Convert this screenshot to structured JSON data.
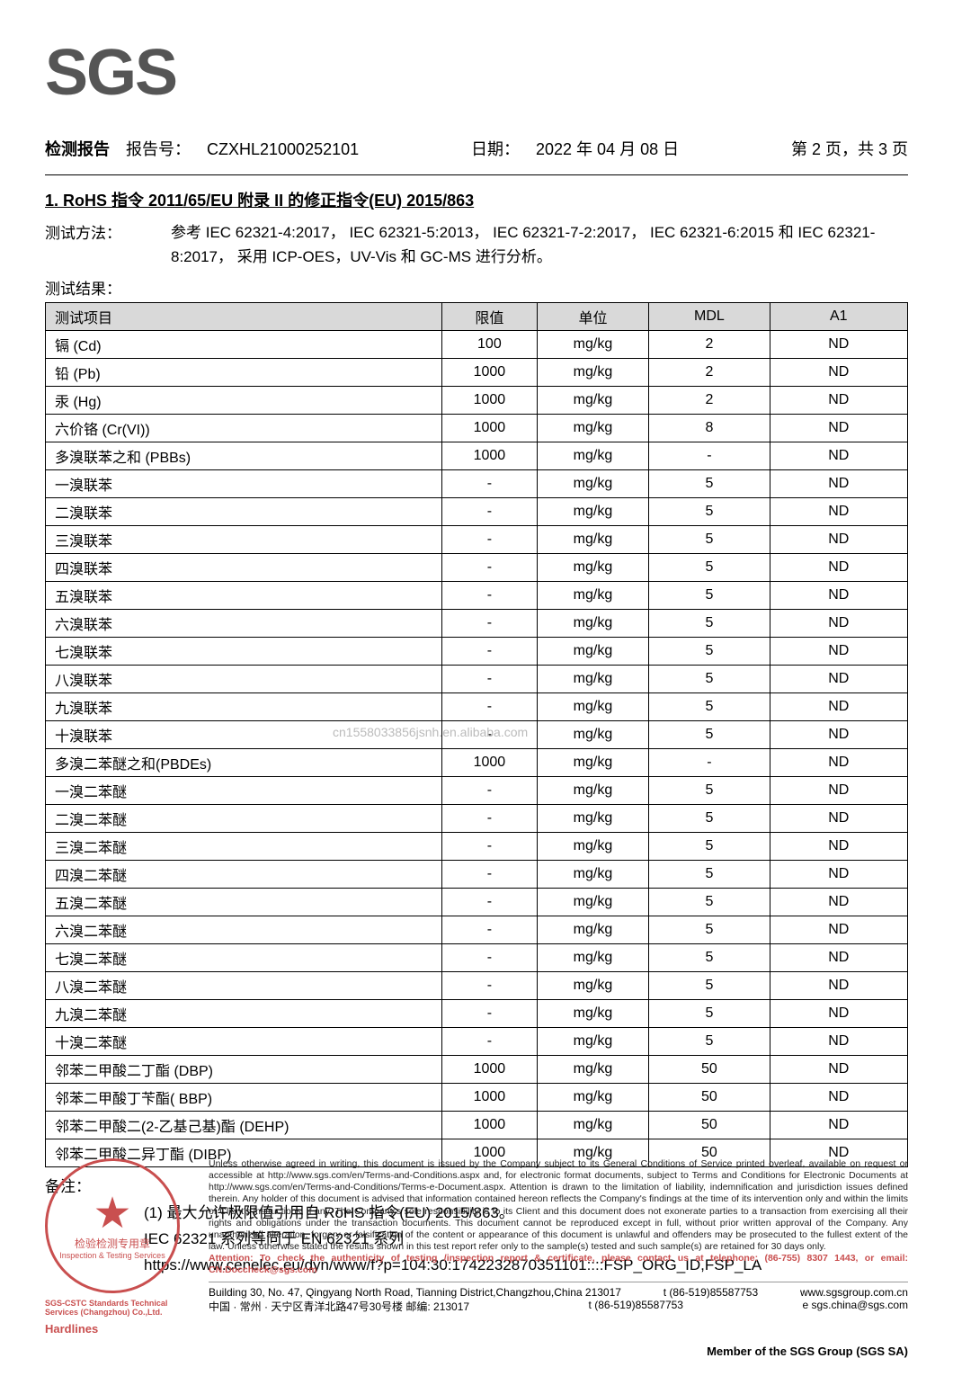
{
  "logo": "SGS",
  "header": {
    "report_label": "检测报告",
    "report_no_label": "报告号：",
    "report_no": "CZXHL21000252101",
    "date_label": "日期：",
    "date": "2022 年 04 月 08 日",
    "page": "第 2 页，共 3 页"
  },
  "section_title": "1. RoHS 指令 2011/65/EU 附录 II 的修正指令(EU) 2015/863",
  "method": {
    "label": "测试方法：",
    "text": "参考 IEC 62321-4:2017， IEC 62321-5:2013， IEC 62321-7-2:2017， IEC 62321-6:2015 和 IEC 62321-8:2017， 采用 ICP-OES，UV-Vis 和 GC-MS 进行分析。"
  },
  "result_label": "测试结果：",
  "watermark": "cn1558033856jsnh.en.alibaba.com",
  "table": {
    "headers": [
      "测试项目",
      "限值",
      "单位",
      "MDL",
      "A1"
    ],
    "rows": [
      [
        "镉 (Cd)",
        "100",
        "mg/kg",
        "2",
        "ND"
      ],
      [
        "铅 (Pb)",
        "1000",
        "mg/kg",
        "2",
        "ND"
      ],
      [
        "汞 (Hg)",
        "1000",
        "mg/kg",
        "2",
        "ND"
      ],
      [
        "六价铬 (Cr(VI))",
        "1000",
        "mg/kg",
        "8",
        "ND"
      ],
      [
        "多溴联苯之和 (PBBs)",
        "1000",
        "mg/kg",
        "-",
        "ND"
      ],
      [
        "一溴联苯",
        "-",
        "mg/kg",
        "5",
        "ND"
      ],
      [
        "二溴联苯",
        "-",
        "mg/kg",
        "5",
        "ND"
      ],
      [
        "三溴联苯",
        "-",
        "mg/kg",
        "5",
        "ND"
      ],
      [
        "四溴联苯",
        "-",
        "mg/kg",
        "5",
        "ND"
      ],
      [
        "五溴联苯",
        "-",
        "mg/kg",
        "5",
        "ND"
      ],
      [
        "六溴联苯",
        "-",
        "mg/kg",
        "5",
        "ND"
      ],
      [
        "七溴联苯",
        "-",
        "mg/kg",
        "5",
        "ND"
      ],
      [
        "八溴联苯",
        "-",
        "mg/kg",
        "5",
        "ND"
      ],
      [
        "九溴联苯",
        "-",
        "mg/kg",
        "5",
        "ND"
      ],
      [
        "十溴联苯",
        "-",
        "mg/kg",
        "5",
        "ND"
      ],
      [
        "多溴二苯醚之和(PBDEs)",
        "1000",
        "mg/kg",
        "-",
        "ND"
      ],
      [
        "一溴二苯醚",
        "-",
        "mg/kg",
        "5",
        "ND"
      ],
      [
        "二溴二苯醚",
        "-",
        "mg/kg",
        "5",
        "ND"
      ],
      [
        "三溴二苯醚",
        "-",
        "mg/kg",
        "5",
        "ND"
      ],
      [
        "四溴二苯醚",
        "-",
        "mg/kg",
        "5",
        "ND"
      ],
      [
        "五溴二苯醚",
        "-",
        "mg/kg",
        "5",
        "ND"
      ],
      [
        "六溴二苯醚",
        "-",
        "mg/kg",
        "5",
        "ND"
      ],
      [
        "七溴二苯醚",
        "-",
        "mg/kg",
        "5",
        "ND"
      ],
      [
        "八溴二苯醚",
        "-",
        "mg/kg",
        "5",
        "ND"
      ],
      [
        "九溴二苯醚",
        "-",
        "mg/kg",
        "5",
        "ND"
      ],
      [
        "十溴二苯醚",
        "-",
        "mg/kg",
        "5",
        "ND"
      ],
      [
        "邻苯二甲酸二丁酯 (DBP)",
        "1000",
        "mg/kg",
        "50",
        "ND"
      ],
      [
        "邻苯二甲酸丁苄酯( BBP)",
        "1000",
        "mg/kg",
        "50",
        "ND"
      ],
      [
        "邻苯二甲酸二(2-乙基己基)酯 (DEHP)",
        "1000",
        "mg/kg",
        "50",
        "ND"
      ],
      [
        "邻苯二甲酸二异丁酯 (DIBP)",
        "1000",
        "mg/kg",
        "50",
        "ND"
      ]
    ]
  },
  "notes": {
    "label": "备注：",
    "line1": "(1) 最大允许极限值引用自 RoHS 指令(EU) 2015/863。",
    "line2": "IEC 62321 系列等同于 EN 62321 系列",
    "line3": "https://www.cenelec.eu/dyn/www/f?p=104:30:1742232870351101::::FSP_ORG_ID,FSP_LA"
  },
  "stamp": {
    "top": "检验检测专用章",
    "en": "Inspection & Testing Services",
    "bottom1": "SGS-CSTC Standards Technical Services (Changzhou) Co.,Ltd.",
    "bottom2": "Hardlines"
  },
  "legal": {
    "text": "Unless otherwise agreed in writing, this document is issued by the Company subject to its General Conditions of Service printed overleaf, available on request or accessible at http://www.sgs.com/en/Terms-and-Conditions.aspx and, for electronic format documents, subject to Terms and Conditions for Electronic Documents at http://www.sgs.com/en/Terms-and-Conditions/Terms-e-Document.aspx. Attention is drawn to the limitation of liability, indemnification and jurisdiction issues defined therein. Any holder of this document is advised that information contained hereon reflects the Company's findings at the time of its intervention only and within the limits of Client's instructions, if any. The Company's sole responsibility is to its Client and this document does not exonerate parties to a transaction from exercising all their rights and obligations under the transaction documents. This document cannot be reproduced except in full, without prior written approval of the Company. Any unauthorized alteration, forgery or falsification of the content or appearance of this document is unlawful and offenders may be prosecuted to the fullest extent of the law. Unless otherwise stated the results shown in this test report refer only to the sample(s) tested and such sample(s) are retained for 30 days only.",
    "attention": "Attention: To check the authenticity of testing /inspection report & certificate, please contact us at telephone: (86-755) 8307 1443, or email: CN.Doccheck@sgs.com"
  },
  "contact": {
    "addr_en": "Building 30, No. 47, Qingyang North Road, Tianning District,Changzhou,China   213017",
    "addr_cn": "中国 · 常州 · 天宁区青洋北路47号30号楼       邮编: 213017",
    "tel1": "t (86-519)85587753",
    "tel2": "t (86-519)85587753",
    "web": "www.sgsgroup.com.cn",
    "email": "e sgs.china@sgs.com"
  },
  "member": "Member of the SGS Group (SGS SA)"
}
